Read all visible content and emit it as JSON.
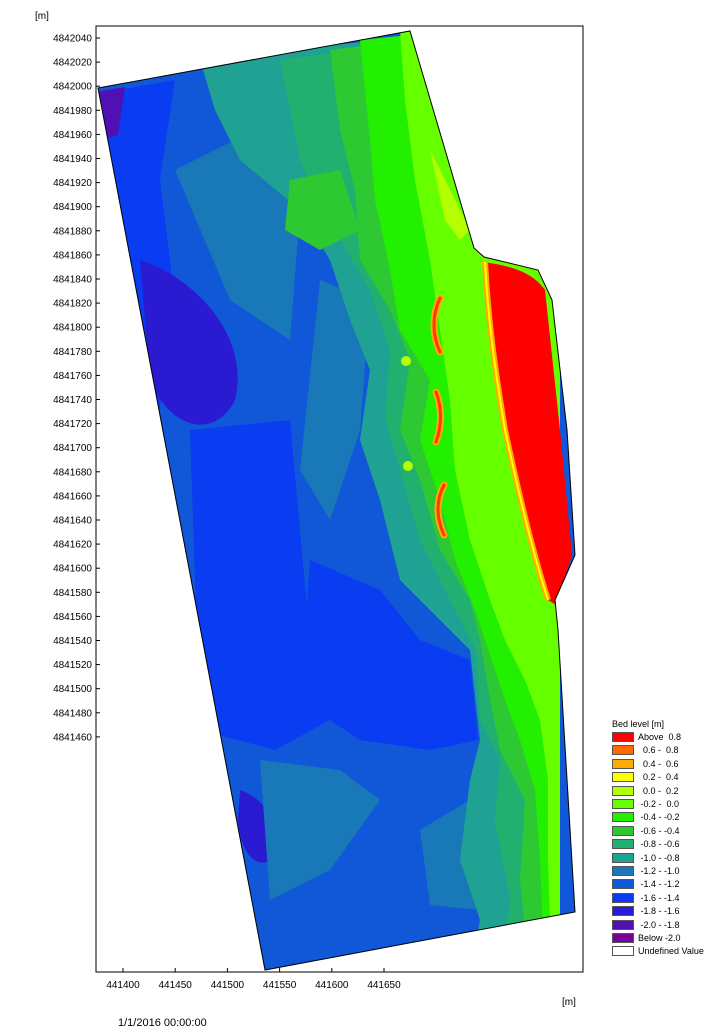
{
  "map": {
    "y_unit": "[m]",
    "x_unit": "[m]",
    "x_ticks": [
      441400,
      441450,
      441500,
      441550,
      441600,
      441650
    ],
    "y_ticks": [
      4842040,
      4842020,
      4842000,
      4841980,
      4841960,
      4841940,
      4841920,
      4841900,
      4841880,
      4841860,
      4841840,
      4841820,
      4841800,
      4841780,
      4841760,
      4841740,
      4841720,
      4841700,
      4841680,
      4841660,
      4841640,
      4841620,
      4841600,
      4841580,
      4841560,
      4841540,
      4841520,
      4841500,
      4841480,
      4841460
    ]
  },
  "legend": {
    "title": "Bed level [m]",
    "items": [
      {
        "label": "Above  0.8",
        "color": "#ff0000"
      },
      {
        "label": "  0.6 -  0.8",
        "color": "#ff6a00"
      },
      {
        "label": "  0.4 -  0.6",
        "color": "#ffaa00"
      },
      {
        "label": "  0.2 -  0.4",
        "color": "#ffff00"
      },
      {
        "label": "  0.0 -  0.2",
        "color": "#b4ff00"
      },
      {
        "label": " -0.2 -  0.0",
        "color": "#66ff00"
      },
      {
        "label": " -0.4 - -0.2",
        "color": "#22f000"
      },
      {
        "label": " -0.6 - -0.4",
        "color": "#2ec832"
      },
      {
        "label": " -0.8 - -0.6",
        "color": "#22b070"
      },
      {
        "label": " -1.0 - -0.8",
        "color": "#1fa294"
      },
      {
        "label": " -1.2 - -1.0",
        "color": "#1878b8"
      },
      {
        "label": " -1.4 - -1.2",
        "color": "#1058d8"
      },
      {
        "label": " -1.6 - -1.4",
        "color": "#0a3cf2"
      },
      {
        "label": " -1.8 - -1.6",
        "color": "#2a1ad2"
      },
      {
        "label": " -2.0 - -1.8",
        "color": "#5010b4"
      },
      {
        "label": "Below -2.0",
        "color": "#7a009a"
      },
      {
        "label": "Undefined Value",
        "color": "#ffffff"
      }
    ]
  },
  "timestamp": "1/1/2016 00:00:00"
}
